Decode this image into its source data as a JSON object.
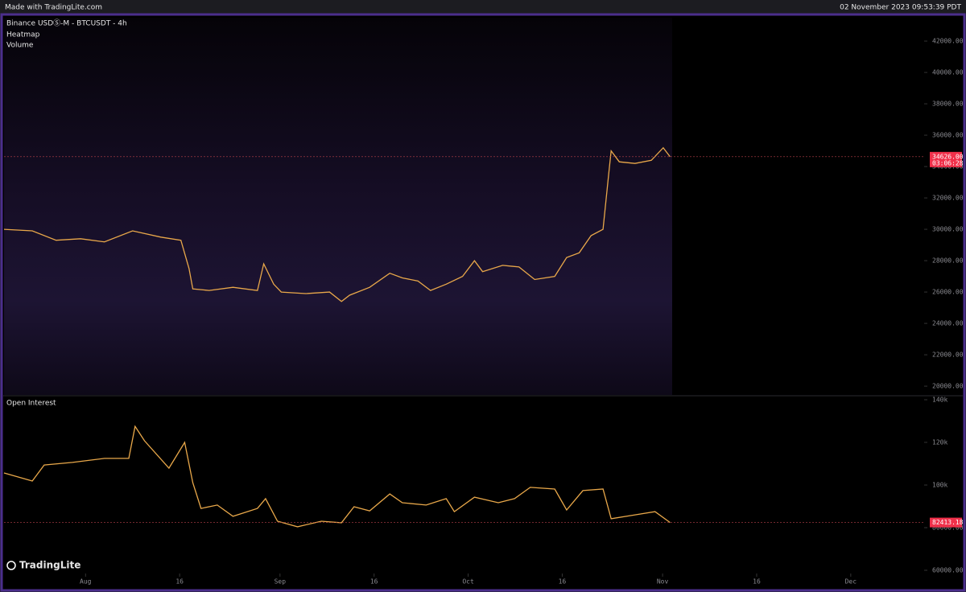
{
  "header": {
    "brand": "Made with TradingLite.com",
    "timestamp": "02 November 2023 09:53:39 PDT",
    "logo": "TradingLite"
  },
  "chart_data": [
    {
      "type": "line",
      "title": "Binance USDⓈ-M - BTCUSDT - 4h",
      "labels": [
        "Heatmap",
        "Volume"
      ],
      "x": [
        200.0,
        204.5,
        208.3,
        212.2,
        216.0,
        220.5,
        225.0,
        228.2,
        229.5,
        230.1,
        232.7,
        236.5,
        240.4,
        241.4,
        243.0,
        244.2,
        248.1,
        251.9,
        253.8,
        255.1,
        258.3,
        261.5,
        263.5,
        266.0,
        268.0,
        270.5,
        273.1,
        275.0,
        276.3,
        279.5,
        282.1,
        284.6,
        287.8,
        289.7,
        291.7,
        293.6,
        295.5,
        296.4,
        296.8,
        298.1,
        300.6,
        303.2,
        305.1,
        306.2
      ],
      "series": [
        {
          "color": "#e9a84a",
          "values": [
            30000,
            29900,
            29300,
            29400,
            29200,
            29900,
            29500,
            29300,
            27500,
            26200,
            26100,
            26300,
            26100,
            27800,
            26500,
            26000,
            25900,
            26000,
            25400,
            25800,
            26300,
            27200,
            26900,
            26700,
            26100,
            26500,
            27000,
            28000,
            27300,
            27700,
            27600,
            26800,
            27000,
            28200,
            28500,
            29600,
            30000,
            33500,
            35000,
            34300,
            34200,
            34400,
            35200,
            34626
          ]
        }
      ],
      "last_label": {
        "value": 34626,
        "label": "34626.00"
      },
      "timer": "03:06:28",
      "xlim": [
        200,
        346.7
      ],
      "ylim": [
        19440,
        43490
      ],
      "yticks": [
        {
          "value": 20000,
          "label": "20000.00"
        },
        {
          "value": 22000,
          "label": "22000.00"
        },
        {
          "value": 24000,
          "label": "24000.00"
        },
        {
          "value": 26000,
          "label": "26000.00"
        },
        {
          "value": 28000,
          "label": "28000.00"
        },
        {
          "value": 30000,
          "label": "30000.00"
        },
        {
          "value": 32000,
          "label": "32000.00"
        },
        {
          "value": 34000,
          "label": "34000.00"
        },
        {
          "value": 36000,
          "label": "36000.00"
        },
        {
          "value": 38000,
          "label": "38000.00"
        },
        {
          "value": 40000,
          "label": "40000.00"
        },
        {
          "value": 42000,
          "label": "42000.00"
        }
      ]
    },
    {
      "type": "line",
      "title": "Open Interest",
      "x": [
        200.0,
        204.5,
        206.4,
        210.9,
        216.0,
        219.9,
        220.9,
        222.4,
        226.3,
        228.8,
        230.1,
        231.4,
        234.0,
        236.5,
        240.4,
        241.7,
        243.6,
        246.8,
        250.6,
        253.8,
        255.8,
        258.3,
        261.5,
        263.5,
        267.3,
        270.5,
        271.8,
        275.0,
        278.8,
        281.4,
        283.9,
        287.8,
        289.7,
        292.3,
        295.5,
        296.8,
        300.6,
        303.8,
        306.2
      ],
      "series": [
        {
          "color": "#e9a84a",
          "values": [
            105660,
            101900,
            109400,
            110600,
            112500,
            112500,
            127500,
            120750,
            107900,
            120000,
            101100,
            89000,
            90600,
            85300,
            89000,
            93600,
            83000,
            80400,
            83000,
            82300,
            89800,
            87900,
            95800,
            91700,
            90600,
            93600,
            87500,
            94300,
            91700,
            93600,
            98900,
            98100,
            88300,
            97400,
            98100,
            84200,
            86000,
            87500,
            82413.18
          ]
        }
      ],
      "last_label": {
        "value": 82413.18,
        "label": "82413.18"
      },
      "xlim": [
        200,
        346.7
      ],
      "ylim": [
        58490,
        141500
      ],
      "yticks": [
        {
          "value": 140000,
          "label": "140k"
        },
        {
          "value": 120000,
          "label": "120k"
        },
        {
          "value": 100000,
          "label": "100k"
        },
        {
          "value": 80000,
          "label": "80000.00"
        },
        {
          "value": 60000,
          "label": "60000.00"
        }
      ],
      "xticks": [
        {
          "value": 213,
          "label": "Aug"
        },
        {
          "value": 228,
          "label": "16"
        },
        {
          "value": 244,
          "label": "Sep"
        },
        {
          "value": 259,
          "label": "16"
        },
        {
          "value": 274,
          "label": "Oct"
        },
        {
          "value": 289,
          "label": "16"
        },
        {
          "value": 305,
          "label": "Nov"
        },
        {
          "value": 320,
          "label": "16"
        },
        {
          "value": 335,
          "label": "Dec"
        }
      ]
    }
  ]
}
